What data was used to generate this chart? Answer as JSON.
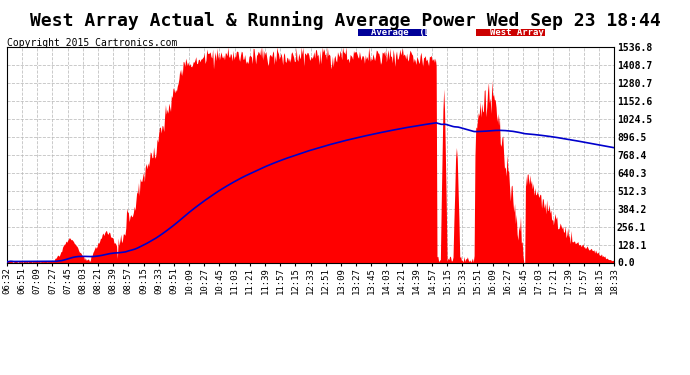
{
  "title": "West Array Actual & Running Average Power Wed Sep 23 18:44",
  "copyright": "Copyright 2015 Cartronics.com",
  "ylabel_right_values": [
    1536.8,
    1408.7,
    1280.7,
    1152.6,
    1024.5,
    896.5,
    768.4,
    640.3,
    512.3,
    384.2,
    256.1,
    128.1,
    0.0
  ],
  "ymax": 1536.8,
  "ymin": 0.0,
  "fill_color": "#FF0000",
  "avg_line_color": "#0000CC",
  "background_color": "#FFFFFF",
  "grid_color": "#BBBBBB",
  "legend_avg_bg": "#000099",
  "legend_west_bg": "#CC0000",
  "legend_avg_text": "Average  (DC Watts)",
  "legend_west_text": "West Array  (DC Watts)",
  "title_fontsize": 13,
  "copyright_fontsize": 7,
  "tick_fontsize": 6.5,
  "x_labels": [
    "06:32",
    "06:51",
    "07:09",
    "07:27",
    "07:45",
    "08:03",
    "08:21",
    "08:39",
    "08:57",
    "09:15",
    "09:33",
    "09:51",
    "10:09",
    "10:27",
    "10:45",
    "11:03",
    "11:21",
    "11:39",
    "11:57",
    "12:15",
    "12:33",
    "12:51",
    "13:09",
    "13:27",
    "13:45",
    "14:03",
    "14:21",
    "14:39",
    "14:57",
    "15:15",
    "15:33",
    "15:51",
    "16:09",
    "16:27",
    "16:45",
    "17:03",
    "17:21",
    "17:39",
    "17:57",
    "18:15",
    "18:33"
  ]
}
